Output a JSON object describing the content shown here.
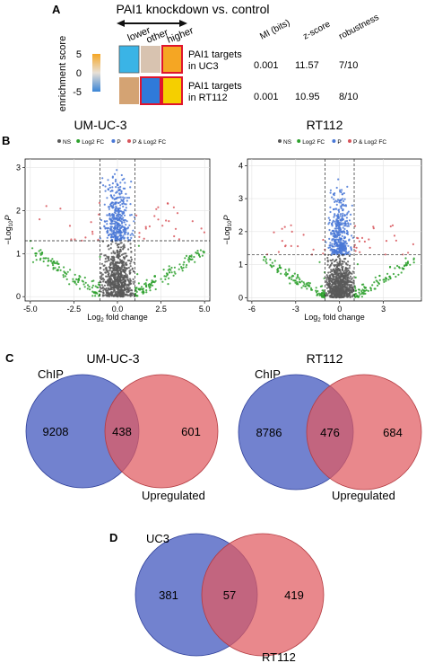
{
  "panel_letters": {
    "a": "A",
    "b": "B",
    "c": "C",
    "d": "D"
  },
  "colors": {
    "ns": "#595959",
    "log2fc": "#2ca02c",
    "p": "#4a78d6",
    "p_and_log2fc": "#d8555b",
    "venn_blue": "#4a5fc1",
    "venn_red": "#e05a60",
    "venn_overlap": "#8e3a5c"
  },
  "chart_data": [
    {
      "type": "heatmap",
      "title": "PAI1 knockdown vs. control",
      "columns": [
        "lower",
        "other",
        "higher"
      ],
      "colorbar": {
        "label": "enrichment score",
        "ticks": [
          "5",
          "0",
          "-5"
        ]
      },
      "rows": [
        {
          "label_line1": "PAI1 targets",
          "label_line2": "in UC3",
          "cells": [
            "#3ab4e6",
            "#d8c3b0",
            "#f5a623"
          ],
          "highlight": 2
        },
        {
          "label_line1": "PAI1 targets",
          "label_line2": "in RT112",
          "cells": [
            "#d4a373",
            "#2f7ad9",
            "#f5cf00"
          ],
          "highlight": 1
        }
      ],
      "stats_headers": [
        "MI (bits)",
        "z-score",
        "robustness"
      ],
      "stats": [
        [
          "0.001",
          "11.57",
          "7/10"
        ],
        [
          "0.001",
          "10.95",
          "8/10"
        ]
      ]
    },
    {
      "type": "scatter",
      "title": "UM-UC-3",
      "legend": [
        "NS",
        "Log2 FC",
        "P",
        "P & Log2 FC"
      ],
      "xlabel_main": "Log",
      "xlabel_sub": "2",
      "xlabel_rest": " fold change",
      "ylabel_main": "−Log",
      "ylabel_sub": "10",
      "ylabel_p": "P",
      "xlim": [
        -5.3,
        5.3
      ],
      "ylim": [
        -0.1,
        3.2
      ],
      "xticks": [
        -5,
        -2.5,
        0,
        2.5,
        5
      ],
      "xtick_labels": [
        "-5.0",
        "-2.5",
        "0.0",
        "2.5",
        "5.0"
      ],
      "yticks": [
        0,
        1,
        2,
        3
      ],
      "ytick_labels": [
        "0",
        "1",
        "2",
        "3"
      ],
      "fc_cutoff": 1,
      "p_cutoff": 1.3,
      "xmax": 5.0,
      "ymax": 3.0,
      "seed": 7
    },
    {
      "type": "scatter",
      "title": "RT112",
      "legend": [
        "NS",
        "Log2 FC",
        "P",
        "P & Log2 FC"
      ],
      "xlabel_main": "Log",
      "xlabel_sub": "2",
      "xlabel_rest": " fold change",
      "ylabel_main": "−Log",
      "ylabel_sub": "10",
      "ylabel_p": "P",
      "xlim": [
        -6.3,
        5.6
      ],
      "ylim": [
        -0.1,
        4.2
      ],
      "xticks": [
        -6,
        -3,
        0,
        3
      ],
      "xtick_labels": [
        "-6",
        "-3",
        "0",
        "3"
      ],
      "yticks": [
        0,
        1,
        2,
        3,
        4
      ],
      "ytick_labels": [
        "0",
        "1",
        "2",
        "3",
        "4"
      ],
      "fc_cutoff": 1,
      "p_cutoff": 1.3,
      "xmax": 5.2,
      "ymax": 3.6,
      "seed": 19
    },
    {
      "type": "venn",
      "title": "UM-UC-3",
      "sets": [
        {
          "name": "ChIP",
          "only": 9208
        },
        {
          "name": "Upregulated",
          "only": 601
        }
      ],
      "intersection": 438
    },
    {
      "type": "venn",
      "title": "RT112",
      "sets": [
        {
          "name": "ChIP",
          "only": 8786
        },
        {
          "name": "Upregulated",
          "only": 684
        }
      ],
      "intersection": 476
    },
    {
      "type": "venn",
      "title": "",
      "sets": [
        {
          "name": "UC3",
          "only": 381
        },
        {
          "name": "RT112",
          "only": 419
        }
      ],
      "intersection": 57
    }
  ]
}
